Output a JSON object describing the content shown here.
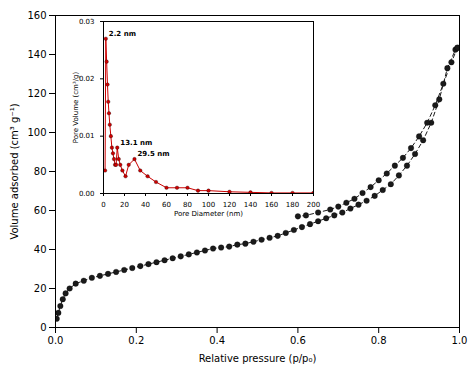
{
  "chart_data": [
    {
      "type": "line",
      "xlabel": "Relative pressure (p/p₀)",
      "ylabel": "Volume adsorbed (cm³ g⁻¹)",
      "series": [
        {
          "color": "#1a1a1a",
          "marker": "circle",
          "line_style": "dashed",
          "x": [
            0.003,
            0.007,
            0.012,
            0.018,
            0.025,
            0.035,
            0.05,
            0.07,
            0.09,
            0.11,
            0.13,
            0.15,
            0.17,
            0.19,
            0.21,
            0.23,
            0.25,
            0.27,
            0.29,
            0.31,
            0.33,
            0.35,
            0.37,
            0.39,
            0.41,
            0.43,
            0.45,
            0.47,
            0.49,
            0.51,
            0.53,
            0.55,
            0.57,
            0.59,
            0.61,
            0.63,
            0.65,
            0.67,
            0.69,
            0.71,
            0.73,
            0.75,
            0.77,
            0.79,
            0.81,
            0.83,
            0.85,
            0.87,
            0.89,
            0.91,
            0.93,
            0.95,
            0.97,
            0.99,
            0.995
          ],
          "values": [
            4.5,
            7.5,
            11.0,
            14.5,
            17.5,
            20.0,
            22.5,
            24.0,
            25.5,
            26.5,
            27.5,
            28.5,
            29.5,
            30.5,
            31.5,
            32.5,
            33.5,
            34.5,
            35.5,
            36.5,
            37.5,
            38.5,
            39.5,
            40.5,
            41.0,
            41.5,
            42.5,
            43.0,
            44.0,
            45.0,
            46.0,
            47.0,
            48.5,
            50.0,
            51.5,
            53.0,
            54.5,
            56.0,
            57.5,
            59.0,
            61.0,
            63.0,
            65.0,
            67.5,
            70.5,
            73.5,
            78.0,
            83.0,
            89.0,
            96.0,
            105.0,
            117.0,
            133.0,
            142.5,
            143.5
          ]
        },
        {
          "color": "#1a1a1a",
          "marker": "circle",
          "line_style": "dashed",
          "x": [
            0.995,
            0.98,
            0.96,
            0.94,
            0.92,
            0.9,
            0.88,
            0.86,
            0.84,
            0.82,
            0.8,
            0.78,
            0.76,
            0.74,
            0.72,
            0.7,
            0.68,
            0.65,
            0.62,
            0.6
          ],
          "values": [
            143.5,
            136.0,
            125.0,
            114.0,
            105.0,
            98.0,
            92.0,
            87.0,
            83.0,
            79.0,
            75.5,
            72.0,
            69.0,
            66.0,
            64.0,
            62.0,
            60.5,
            59.0,
            57.5,
            57.0
          ]
        }
      ],
      "xlim": [
        0,
        1.0
      ],
      "ylim": [
        0,
        160
      ],
      "xticks": [
        {
          "value": 0.0,
          "label": "0.0"
        },
        0.2,
        0.4,
        0.6,
        0.8,
        {
          "value": 1.0,
          "label": "1.0"
        }
      ],
      "yticks": [
        0,
        20,
        40,
        60,
        80,
        100,
        120,
        140,
        160
      ],
      "grid": false
    },
    {
      "type": "line",
      "xlabel": "Pore Diameter (nm)",
      "ylabel": "Pore Volume (cm³/g)",
      "series": [
        {
          "color": "#cc0000",
          "marker": "circle",
          "line_style": "solid",
          "x": [
            1.5,
            2.2,
            3.0,
            3.8,
            4.5,
            5.2,
            6.0,
            7.0,
            8.0,
            9.0,
            10.0,
            11.0,
            12.0,
            13.1,
            14.5,
            16.0,
            18.0,
            21.0,
            24.0,
            29.5,
            35.0,
            42.0,
            50.0,
            60.0,
            70.0,
            80.0,
            90.0,
            100.0,
            120.0,
            140.0,
            160.0,
            180.0,
            200.0
          ],
          "values": [
            0.004,
            0.027,
            0.023,
            0.019,
            0.016,
            0.014,
            0.012,
            0.01,
            0.008,
            0.007,
            0.006,
            0.005,
            0.005,
            0.008,
            0.006,
            0.005,
            0.004,
            0.003,
            0.005,
            0.006,
            0.004,
            0.003,
            0.002,
            0.001,
            0.001,
            0.001,
            0.0005,
            0.0005,
            0.0003,
            0.0002,
            0.0001,
            0.0001,
            0.0001
          ]
        }
      ],
      "xlim": [
        0,
        200
      ],
      "ylim": [
        0,
        0.03
      ],
      "xticks": [
        0,
        20,
        40,
        60,
        80,
        100,
        120,
        140,
        160,
        180,
        200
      ],
      "yticks": [
        {
          "value": 0.0,
          "label": "0.00"
        },
        {
          "value": 0.01,
          "label": "0.01"
        },
        {
          "value": 0.02,
          "label": "0.02"
        },
        {
          "value": 0.03,
          "label": "0.03"
        }
      ],
      "grid": false,
      "annotations": [
        {
          "text": "2.2 nm",
          "x": 2.2,
          "y": 0.027
        },
        {
          "text": "13.1 nm",
          "x": 13.1,
          "y": 0.008
        },
        {
          "text": "29.5 nm",
          "x": 29.5,
          "y": 0.006
        }
      ]
    }
  ]
}
